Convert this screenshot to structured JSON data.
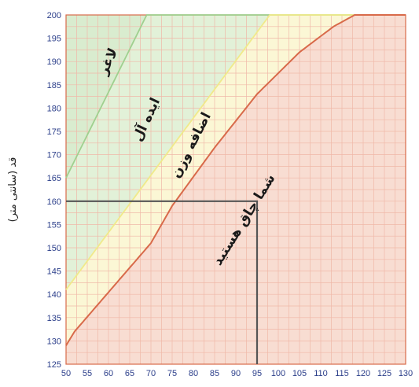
{
  "chart_data": {
    "type": "area",
    "ylabel": "قد (سانتی متر)",
    "xlabel": "",
    "xlim": [
      50,
      130
    ],
    "ylim": [
      125,
      200
    ],
    "x_ticks": [
      50,
      55,
      60,
      65,
      70,
      75,
      80,
      85,
      90,
      95,
      100,
      105,
      110,
      115,
      120,
      125,
      130
    ],
    "y_ticks": [
      125,
      130,
      135,
      140,
      145,
      150,
      155,
      160,
      165,
      170,
      175,
      180,
      185,
      190,
      195,
      200
    ],
    "grid": true,
    "boundaries": [
      {
        "id": "thin_ideal",
        "color": "#9fd08f",
        "points": [
          [
            50,
            165
          ],
          [
            69,
            200
          ]
        ]
      },
      {
        "id": "ideal_over",
        "color": "#f0ea8a",
        "points": [
          [
            50,
            141
          ],
          [
            98,
            200
          ]
        ]
      },
      {
        "id": "over_obese",
        "color": "#d86a4a",
        "points": [
          [
            50,
            129
          ],
          [
            52,
            132
          ],
          [
            70,
            151
          ],
          [
            75,
            159
          ],
          [
            85,
            171.5
          ],
          [
            95,
            183
          ],
          [
            105,
            192
          ],
          [
            113,
            197.5
          ],
          [
            118,
            200
          ],
          [
            130,
            200
          ]
        ]
      }
    ],
    "zones": [
      {
        "label": "لاغر",
        "fill": "#d9eccf",
        "label_x": 60,
        "label_y": 190,
        "label_angle": -65
      },
      {
        "label": "ایده آل",
        "fill": "#e2f1d8",
        "label_x": 69,
        "label_y": 177.5,
        "label_angle": -65
      },
      {
        "label": "اضافه وزن",
        "fill": "#fbf7d5",
        "label_x": 79.5,
        "label_y": 172,
        "label_angle": -63
      },
      {
        "label": "شما چاق هستید",
        "fill": "#f8ddd2",
        "label_x": 92,
        "label_y": 156,
        "label_angle": -58
      }
    ],
    "highlight": {
      "x": 95,
      "y": 160,
      "color": "#555555"
    }
  },
  "colors": {
    "grid": "#f0b8a8",
    "border": "#d86a4a",
    "tick": "#2b3e8a"
  }
}
